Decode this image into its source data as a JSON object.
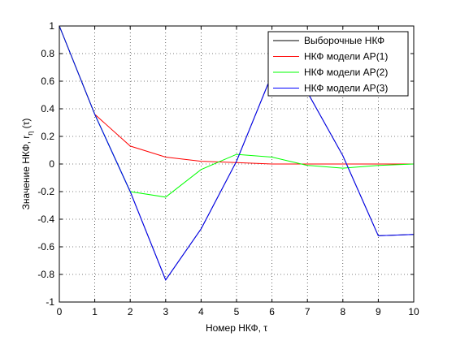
{
  "chart_data": {
    "type": "line",
    "xlabel": "Номер НКФ, τ",
    "ylabel": {
      "main": "Значение НКФ, r",
      "sub": "η",
      "tail": " (τ)"
    },
    "xlim": [
      0,
      10
    ],
    "ylim": [
      -1,
      1
    ],
    "xticks": [
      0,
      1,
      2,
      3,
      4,
      5,
      6,
      7,
      8,
      9,
      10
    ],
    "yticks": [
      -1,
      -0.8,
      -0.6,
      -0.4,
      -0.2,
      0,
      0.2,
      0.4,
      0.6,
      0.8,
      1
    ],
    "ytick_labels": [
      "-1",
      "-0.8",
      "-0.6",
      "-0.4",
      "-0.2",
      "0",
      "0.2",
      "0.4",
      "0.6",
      "0.8",
      "1"
    ],
    "grid": true,
    "legend_position": "top-right",
    "series": [
      {
        "name": "Выборочные НКФ",
        "color": "#000000",
        "x": [
          0,
          1,
          2,
          3,
          4,
          5,
          6,
          7,
          8,
          9,
          10
        ],
        "y": [
          1,
          0.36,
          -0.2,
          -0.84,
          -0.47,
          0.02,
          0.65,
          0.52,
          0.06,
          -0.52,
          -0.51
        ]
      },
      {
        "name": "НКФ модели АР(1)",
        "color": "#ff0000",
        "x": [
          0,
          1,
          2,
          3,
          4,
          5,
          6,
          7,
          8,
          9,
          10
        ],
        "y": [
          1,
          0.36,
          0.13,
          0.05,
          0.02,
          0.01,
          0.0,
          0.0,
          0.0,
          0.0,
          0.0
        ]
      },
      {
        "name": "НКФ модели АР(2)",
        "color": "#00ff00",
        "x": [
          0,
          1,
          2,
          3,
          4,
          5,
          6,
          7,
          8,
          9,
          10
        ],
        "y": [
          1,
          0.36,
          -0.2,
          -0.24,
          -0.04,
          0.07,
          0.05,
          -0.01,
          -0.03,
          -0.01,
          0.0
        ]
      },
      {
        "name": "НКФ модели АР(3)",
        "color": "#0000ff",
        "x": [
          0,
          1,
          2,
          3,
          4,
          5,
          6,
          7,
          8,
          9,
          10
        ],
        "y": [
          1,
          0.36,
          -0.2,
          -0.84,
          -0.47,
          0.02,
          0.65,
          0.52,
          0.06,
          -0.52,
          -0.51
        ]
      }
    ]
  }
}
